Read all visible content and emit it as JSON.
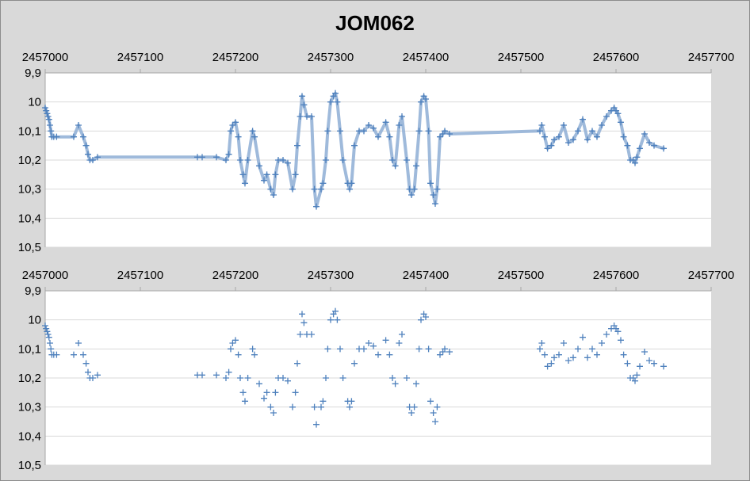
{
  "title": "JOM062",
  "colors": {
    "background": "#d9d9d9",
    "plot_area": "#ffffff",
    "gridline": "#d9d9d9",
    "marker": "#4f81bd",
    "line": "#95b3d7"
  },
  "chart_data": [
    {
      "type": "line",
      "title": "JOM062",
      "xlim": [
        2457000,
        2457700
      ],
      "ylim": [
        9.9,
        10.5
      ],
      "y_reversed": true,
      "x_axis_position": "top",
      "grid": true,
      "x_ticks": [
        "2457000",
        "2457100",
        "2457200",
        "2457300",
        "2457400",
        "2457500",
        "2457600",
        "2457700"
      ],
      "y_ticks": [
        "9,9",
        "10",
        "10,1",
        "10,2",
        "10,3",
        "10,4",
        "10,5"
      ],
      "series": [
        {
          "marker": "+",
          "line": "smoothed",
          "x": [
            2457000,
            2457001,
            2457002,
            2457003,
            2457004,
            2457005,
            2457006,
            2457007,
            2457009,
            2457012,
            2457030,
            2457035,
            2457040,
            2457043,
            2457045,
            2457047,
            2457050,
            2457055,
            2457160,
            2457165,
            2457180,
            2457190,
            2457193,
            2457195,
            2457197,
            2457200,
            2457203,
            2457205,
            2457208,
            2457210,
            2457213,
            2457218,
            2457220,
            2457225,
            2457230,
            2457233,
            2457237,
            2457240,
            2457242,
            2457245,
            2457250,
            2457255,
            2457260,
            2457263,
            2457265,
            2457268,
            2457270,
            2457272,
            2457275,
            2457280,
            2457283,
            2457285,
            2457290,
            2457292,
            2457295,
            2457297,
            2457300,
            2457303,
            2457305,
            2457307,
            2457310,
            2457313,
            2457318,
            2457320,
            2457322,
            2457325,
            2457330,
            2457335,
            2457340,
            2457345,
            2457350,
            2457358,
            2457362,
            2457365,
            2457368,
            2457372,
            2457375,
            2457380,
            2457383,
            2457385,
            2457388,
            2457390,
            2457393,
            2457395,
            2457398,
            2457400,
            2457403,
            2457405,
            2457408,
            2457410,
            2457412,
            2457415,
            2457418,
            2457420,
            2457425,
            2457520,
            2457522,
            2457525,
            2457528,
            2457532,
            2457535,
            2457540,
            2457545,
            2457550,
            2457555,
            2457560,
            2457565,
            2457570,
            2457575,
            2457580,
            2457585,
            2457590,
            2457595,
            2457598,
            2457600,
            2457602,
            2457605,
            2457608,
            2457612,
            2457615,
            2457618,
            2457620,
            2457622,
            2457625,
            2457630,
            2457635,
            2457640,
            2457650
          ],
          "y": [
            10.02,
            10.03,
            10.04,
            10.05,
            10.06,
            10.08,
            10.1,
            10.12,
            10.12,
            10.12,
            10.12,
            10.08,
            10.12,
            10.15,
            10.18,
            10.2,
            10.2,
            10.19,
            10.19,
            10.19,
            10.19,
            10.2,
            10.18,
            10.1,
            10.08,
            10.07,
            10.12,
            10.2,
            10.25,
            10.28,
            10.2,
            10.1,
            10.12,
            10.22,
            10.27,
            10.25,
            10.3,
            10.32,
            10.25,
            10.2,
            10.2,
            10.21,
            10.3,
            10.25,
            10.15,
            10.05,
            9.98,
            10.01,
            10.05,
            10.05,
            10.3,
            10.36,
            10.3,
            10.28,
            10.2,
            10.1,
            10.0,
            9.98,
            9.97,
            10.0,
            10.1,
            10.2,
            10.28,
            10.3,
            10.28,
            10.15,
            10.1,
            10.1,
            10.08,
            10.09,
            10.12,
            10.07,
            10.12,
            10.2,
            10.22,
            10.08,
            10.05,
            10.2,
            10.3,
            10.32,
            10.3,
            10.22,
            10.1,
            10.0,
            9.98,
            9.99,
            10.1,
            10.28,
            10.32,
            10.35,
            10.3,
            10.12,
            10.11,
            10.1,
            10.11,
            10.1,
            10.08,
            10.12,
            10.16,
            10.15,
            10.13,
            10.12,
            10.08,
            10.14,
            10.13,
            10.1,
            10.06,
            10.13,
            10.1,
            10.12,
            10.08,
            10.05,
            10.03,
            10.02,
            10.03,
            10.04,
            10.07,
            10.12,
            10.15,
            10.2,
            10.2,
            10.21,
            10.19,
            10.16,
            10.11,
            10.14,
            10.15,
            10.16
          ]
        },
        {
          "marker": "+",
          "line": "none",
          "x": [
            2457000,
            2457001,
            2457002,
            2457003,
            2457004,
            2457005,
            2457006,
            2457007,
            2457009,
            2457012,
            2457030,
            2457035,
            2457040,
            2457043,
            2457045,
            2457047,
            2457050,
            2457055,
            2457160,
            2457165,
            2457180,
            2457190,
            2457193,
            2457195,
            2457197,
            2457200,
            2457203,
            2457205,
            2457208,
            2457210,
            2457213,
            2457218,
            2457220,
            2457225,
            2457230,
            2457233,
            2457237,
            2457240,
            2457242,
            2457245,
            2457250,
            2457255,
            2457260,
            2457263,
            2457265,
            2457268,
            2457270,
            2457272,
            2457275,
            2457280,
            2457283,
            2457285,
            2457290,
            2457292,
            2457295,
            2457297,
            2457300,
            2457303,
            2457305,
            2457307,
            2457310,
            2457313,
            2457318,
            2457320,
            2457322,
            2457325,
            2457330,
            2457335,
            2457340,
            2457345,
            2457350,
            2457358,
            2457362,
            2457365,
            2457368,
            2457372,
            2457375,
            2457380,
            2457383,
            2457385,
            2457388,
            2457390,
            2457393,
            2457395,
            2457398,
            2457400,
            2457403,
            2457405,
            2457408,
            2457410,
            2457412,
            2457415,
            2457418,
            2457420,
            2457425,
            2457520,
            2457522,
            2457525,
            2457528,
            2457532,
            2457535,
            2457540,
            2457545,
            2457550,
            2457555,
            2457560,
            2457565,
            2457570,
            2457575,
            2457580,
            2457585,
            2457590,
            2457595,
            2457598,
            2457600,
            2457602,
            2457605,
            2457608,
            2457612,
            2457615,
            2457618,
            2457620,
            2457622,
            2457625,
            2457630,
            2457635,
            2457640,
            2457650
          ],
          "y": [
            10.02,
            10.03,
            10.04,
            10.05,
            10.06,
            10.08,
            10.1,
            10.12,
            10.12,
            10.12,
            10.12,
            10.08,
            10.12,
            10.15,
            10.18,
            10.2,
            10.2,
            10.19,
            10.19,
            10.19,
            10.19,
            10.2,
            10.18,
            10.1,
            10.08,
            10.07,
            10.12,
            10.2,
            10.25,
            10.28,
            10.2,
            10.1,
            10.12,
            10.22,
            10.27,
            10.25,
            10.3,
            10.32,
            10.25,
            10.2,
            10.2,
            10.21,
            10.3,
            10.25,
            10.15,
            10.05,
            9.98,
            10.01,
            10.05,
            10.05,
            10.3,
            10.36,
            10.3,
            10.28,
            10.2,
            10.1,
            10.0,
            9.98,
            9.97,
            10.0,
            10.1,
            10.2,
            10.28,
            10.3,
            10.28,
            10.15,
            10.1,
            10.1,
            10.08,
            10.09,
            10.12,
            10.07,
            10.12,
            10.2,
            10.22,
            10.08,
            10.05,
            10.2,
            10.3,
            10.32,
            10.3,
            10.22,
            10.1,
            10.0,
            9.98,
            9.99,
            10.1,
            10.28,
            10.32,
            10.35,
            10.3,
            10.12,
            10.11,
            10.1,
            10.11,
            10.1,
            10.08,
            10.12,
            10.16,
            10.15,
            10.13,
            10.12,
            10.08,
            10.14,
            10.13,
            10.1,
            10.06,
            10.13,
            10.1,
            10.12,
            10.08,
            10.05,
            10.03,
            10.02,
            10.03,
            10.04,
            10.07,
            10.12,
            10.15,
            10.2,
            10.2,
            10.21,
            10.19,
            10.16,
            10.11,
            10.14,
            10.15,
            10.16
          ]
        }
      ]
    }
  ]
}
